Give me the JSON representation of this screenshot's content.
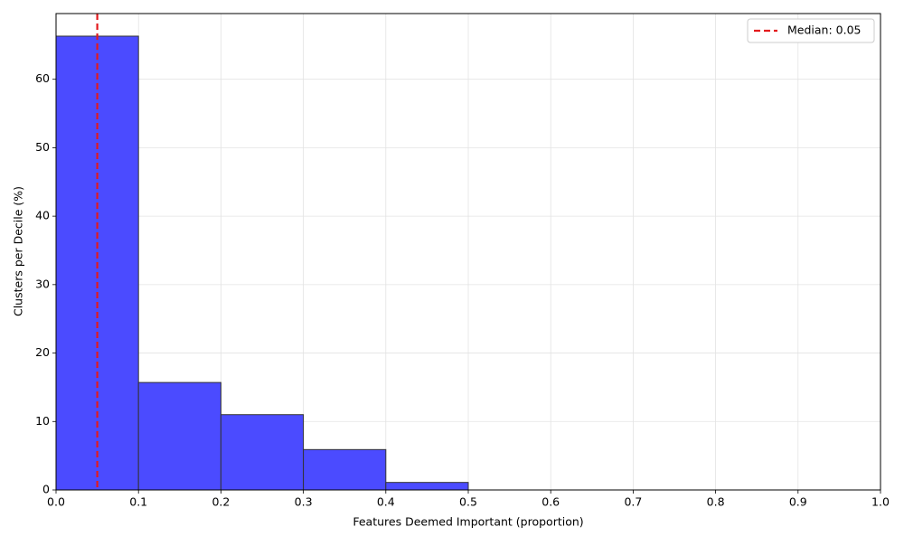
{
  "chart_data": {
    "type": "histogram",
    "xlabel": "Features Deemed Important (proportion)",
    "ylabel": "Clusters per Decile (%)",
    "bins": [
      0,
      0.1,
      0.2,
      0.3,
      0.4,
      0.5
    ],
    "values": [
      66.3,
      15.7,
      11.0,
      5.9,
      1.1
    ],
    "color": "#4b4bff",
    "edgecolor": "#333333",
    "xlim": [
      0,
      1
    ],
    "xticks": [
      {
        "value": 0,
        "label": "0.0"
      },
      0.1,
      0.2,
      0.3,
      0.4,
      0.5,
      0.6,
      0.7,
      0.8,
      0.9,
      {
        "value": 1,
        "label": "1.0"
      }
    ],
    "ylim": [
      0,
      69.6
    ],
    "yticks": [
      0,
      10,
      20,
      30,
      40,
      50,
      60
    ],
    "grid": true,
    "reference_lines": [
      {
        "value": 0.05,
        "label": "Median: 0.05",
        "color": "#e31a1c"
      }
    ],
    "legend": "upper right"
  }
}
